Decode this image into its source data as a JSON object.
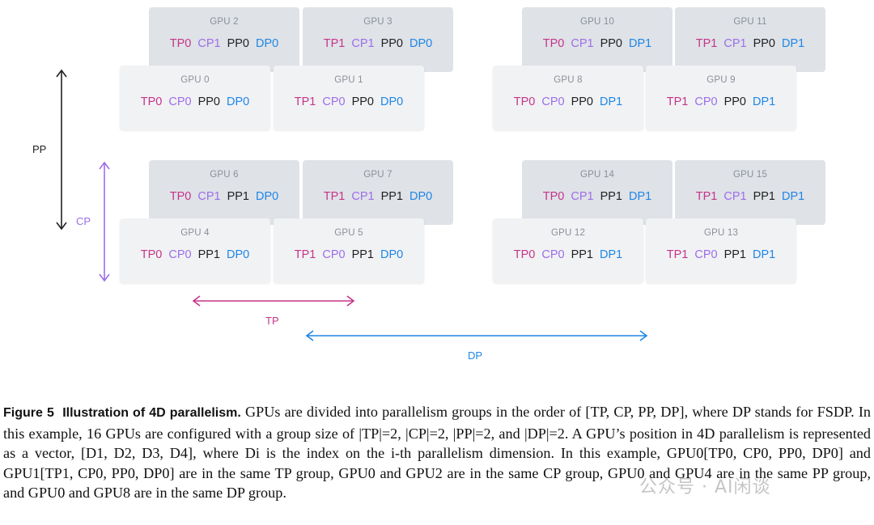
{
  "gpus": [
    {
      "name": "GPU 2",
      "tp": "TP0",
      "cp": "CP1",
      "pp": "PP0",
      "dp": "DP0"
    },
    {
      "name": "GPU 3",
      "tp": "TP1",
      "cp": "CP1",
      "pp": "PP0",
      "dp": "DP0"
    },
    {
      "name": "GPU 10",
      "tp": "TP0",
      "cp": "CP1",
      "pp": "PP0",
      "dp": "DP1"
    },
    {
      "name": "GPU 11",
      "tp": "TP1",
      "cp": "CP1",
      "pp": "PP0",
      "dp": "DP1"
    },
    {
      "name": "GPU 0",
      "tp": "TP0",
      "cp": "CP0",
      "pp": "PP0",
      "dp": "DP0"
    },
    {
      "name": "GPU 1",
      "tp": "TP1",
      "cp": "CP0",
      "pp": "PP0",
      "dp": "DP0"
    },
    {
      "name": "GPU 8",
      "tp": "TP0",
      "cp": "CP0",
      "pp": "PP0",
      "dp": "DP1"
    },
    {
      "name": "GPU 9",
      "tp": "TP1",
      "cp": "CP0",
      "pp": "PP0",
      "dp": "DP1"
    },
    {
      "name": "GPU 6",
      "tp": "TP0",
      "cp": "CP1",
      "pp": "PP1",
      "dp": "DP0"
    },
    {
      "name": "GPU 7",
      "tp": "TP1",
      "cp": "CP1",
      "pp": "PP1",
      "dp": "DP0"
    },
    {
      "name": "GPU 14",
      "tp": "TP0",
      "cp": "CP1",
      "pp": "PP1",
      "dp": "DP1"
    },
    {
      "name": "GPU 15",
      "tp": "TP1",
      "cp": "CP1",
      "pp": "PP1",
      "dp": "DP1"
    },
    {
      "name": "GPU 4",
      "tp": "TP0",
      "cp": "CP0",
      "pp": "PP1",
      "dp": "DP0"
    },
    {
      "name": "GPU 5",
      "tp": "TP1",
      "cp": "CP0",
      "pp": "PP1",
      "dp": "DP0"
    },
    {
      "name": "GPU 12",
      "tp": "TP0",
      "cp": "CP0",
      "pp": "PP1",
      "dp": "DP1"
    },
    {
      "name": "GPU 13",
      "tp": "TP1",
      "cp": "CP0",
      "pp": "PP1",
      "dp": "DP1"
    }
  ],
  "axes": {
    "pp": "PP",
    "cp": "CP",
    "tp": "TP",
    "dp": "DP"
  },
  "colors": {
    "tp": "#c5358a",
    "cp": "#9c6ee8",
    "pp": "#222222",
    "dp": "#1e86e6"
  },
  "caption": {
    "figure_label": "Figure 5",
    "figure_title": "Illustration of 4D parallelism.",
    "text": "GPUs are divided into parallelism groups in the order of [TP, CP, PP, DP], where DP stands for FSDP. In this example, 16 GPUs are configured with a group size of |TP|=2, |CP|=2, |PP|=2, and |DP|=2. A GPU’s position in 4D parallelism is represented as a vector, [D1, D2, D3, D4], where Di is the index on the i-th parallelism dimension. In this example, GPU0[TP0, CP0, PP0, DP0] and GPU1[TP1, CP0, PP0, DP0] are in the same TP group, GPU0 and GPU2 are in the same CP group, GPU0 and GPU4 are in the same PP group, and GPU0 and GPU8 are in the same DP group."
  },
  "watermark": "公众号 · AI闲谈"
}
